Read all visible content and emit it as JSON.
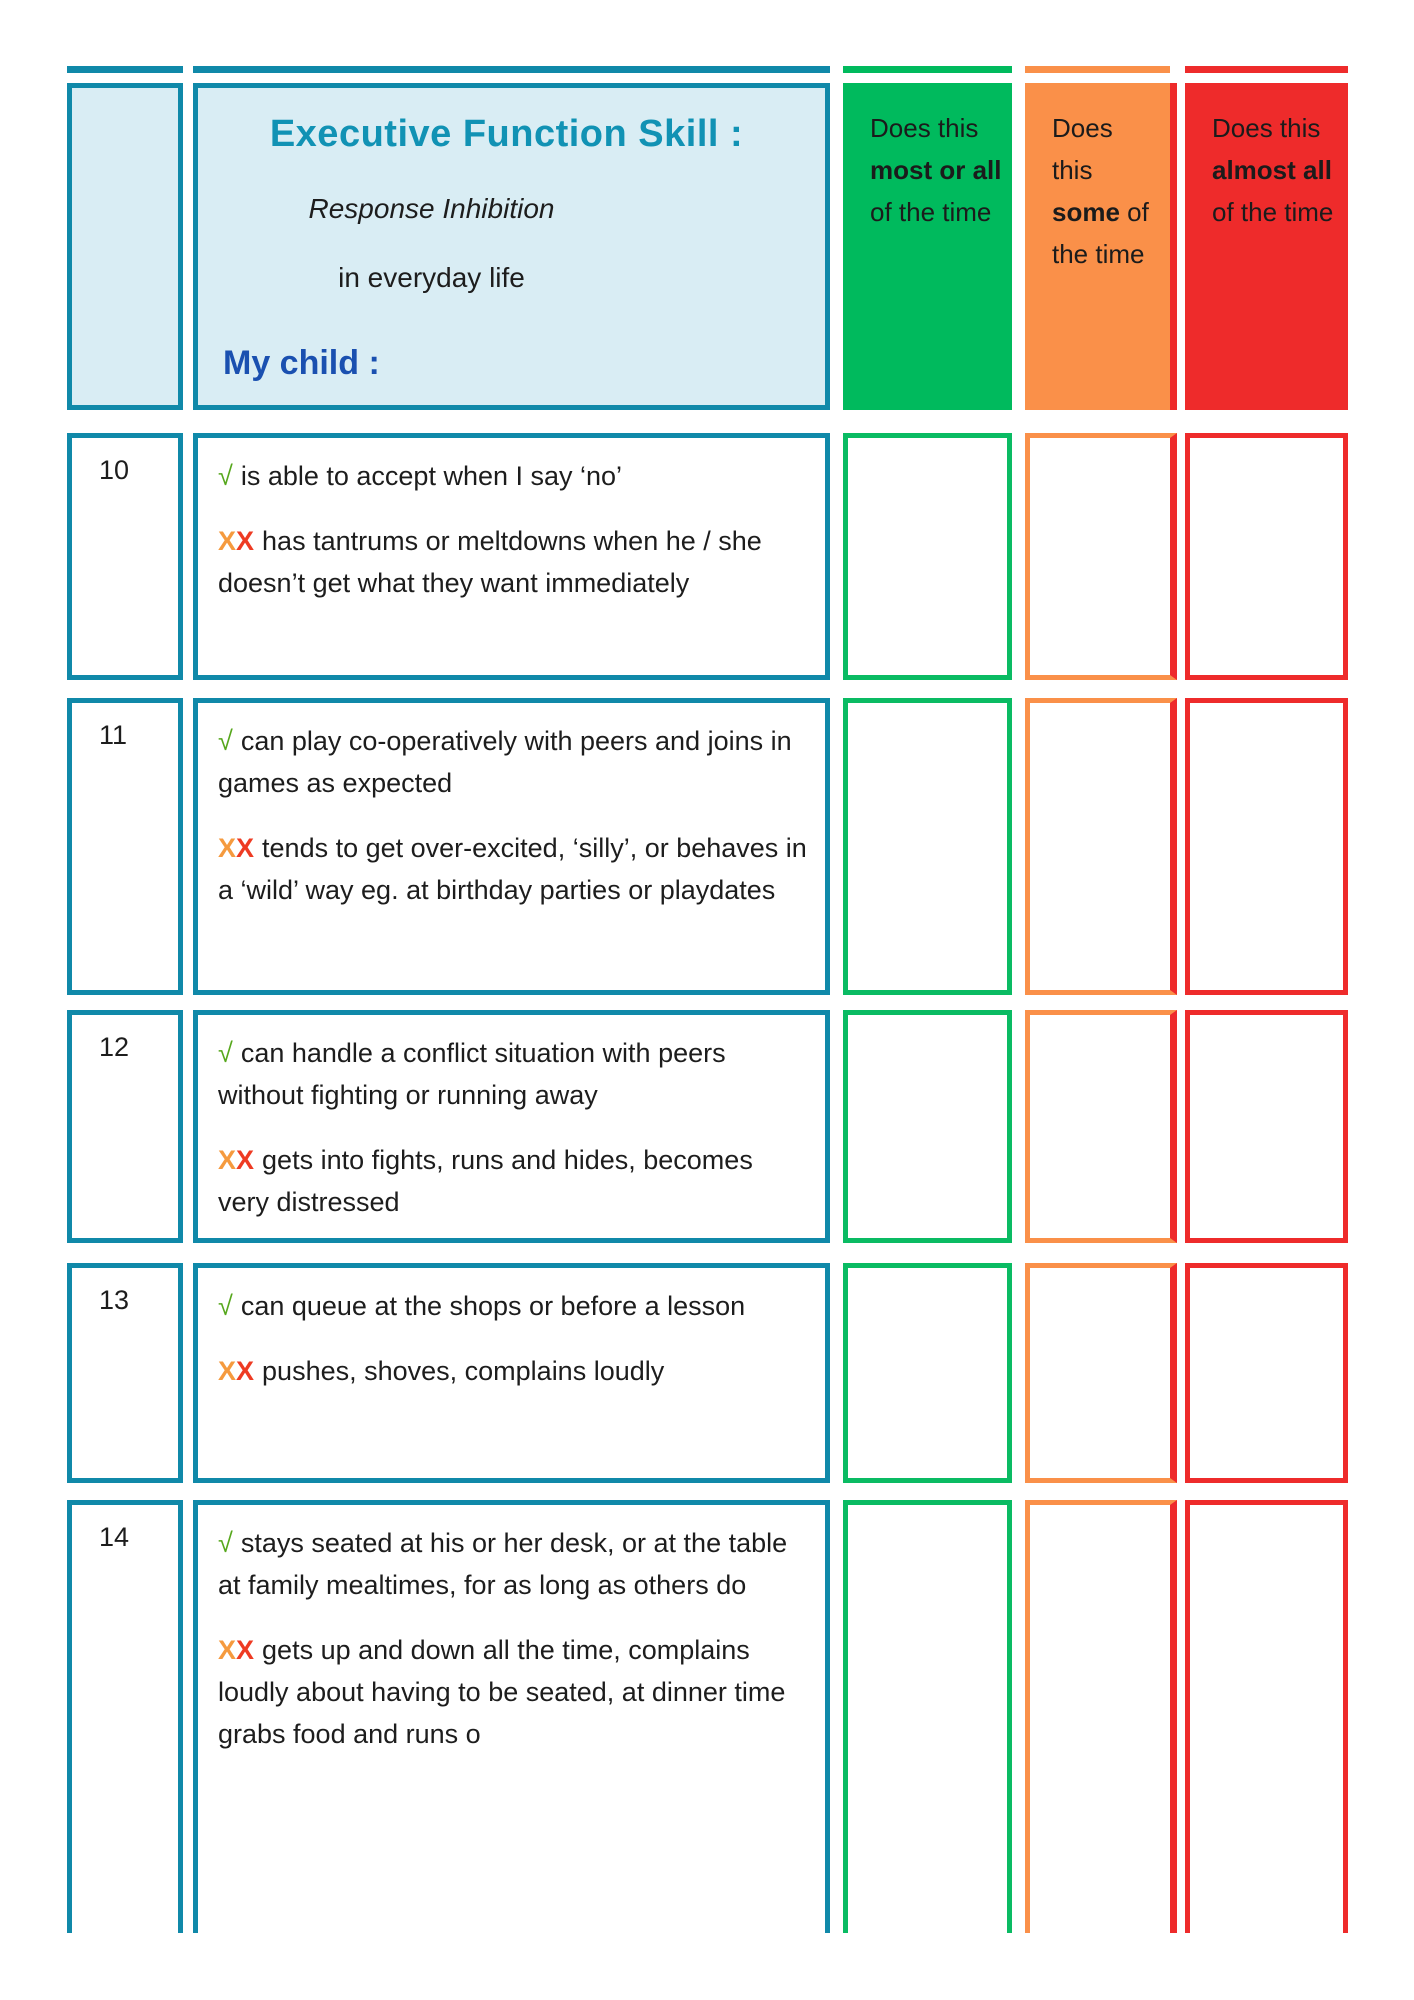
{
  "header": {
    "title": "Executive Function Skill :",
    "subtitle_italic": "Response Inhibition",
    "subtitle_plain": "in everyday life",
    "my_child_label": "My child :",
    "answer_columns": [
      {
        "name": "most-or-all",
        "prefix": "Does this ",
        "bold": "most or all",
        "suffix": " of the time",
        "color": "#00ba5d"
      },
      {
        "name": "some",
        "prefix": "Does this ",
        "bold": "some",
        "suffix": " of the time",
        "color": "#fa9049"
      },
      {
        "name": "almost-all",
        "prefix": "Does this ",
        "bold": "almost all",
        "suffix": " of the time",
        "color": "#ee2b2b"
      }
    ]
  },
  "symbols": {
    "check": "√",
    "cross1": "X",
    "cross2": "X"
  },
  "rows": [
    {
      "number": "10",
      "positive": "is able to accept when I say ‘no’",
      "negative": "has tantrums or meltdowns when he / she doesn’t get what they want immediately"
    },
    {
      "number": "11",
      "positive": "can play co-operatively with peers and joins in games as expected",
      "negative": "tends to get over-excited, ‘silly’, or behaves in a ‘wild’ way eg. at birthday parties or playdates"
    },
    {
      "number": "12",
      "positive": "can handle a conflict situation with peers without fighting or running away",
      "negative": "gets into fights, runs and hides, becomes very distressed"
    },
    {
      "number": "13",
      "positive": "can queue at the shops or before a lesson",
      "negative": "pushes, shoves, complains loudly"
    },
    {
      "number": "14",
      "positive": "stays seated at his or her desk, or at the table at family mealtimes, for as long as others do",
      "negative": "gets up and down all the time, complains loudly about having to be seated, at dinner time grabs food and runs o"
    }
  ],
  "colors": {
    "teal_border": "#1089a9",
    "header_fill": "#d9edf4",
    "title_text": "#1192b4",
    "my_child_text": "#1a50b0",
    "green": "#00ba5d",
    "orange": "#fa9049",
    "red": "#ee2b2b",
    "check_green": "#56a71c",
    "cross_orange": "#f59a3e",
    "cross_red": "#ee3b23",
    "body_text": "#1d1d1d"
  }
}
